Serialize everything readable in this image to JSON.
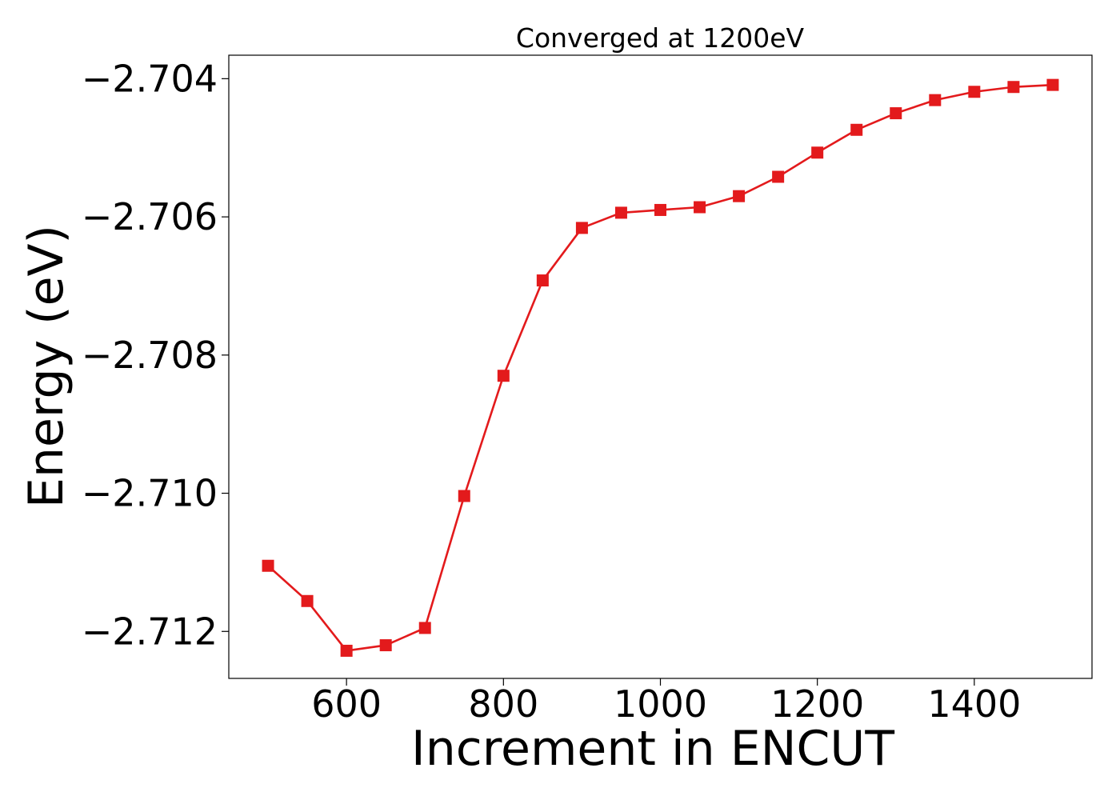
{
  "chart_data": {
    "type": "line",
    "title": "Converged at 1200eV",
    "xlabel": "Increment in ENCUT",
    "ylabel": "Energy (eV)",
    "xlim": [
      450,
      1550
    ],
    "ylim": [
      -2.71268,
      -2.70366
    ],
    "x_ticks": [
      600,
      800,
      1000,
      1200,
      1400
    ],
    "x_tick_labels": [
      "600",
      "800",
      "1000",
      "1200",
      "1400"
    ],
    "y_ticks": [
      -2.704,
      -2.706,
      -2.708,
      -2.71,
      -2.712
    ],
    "y_tick_labels": [
      "−2.704",
      "−2.706",
      "−2.708",
      "−2.710",
      "−2.712"
    ],
    "grid": false,
    "marker": "square",
    "color": "#e31a1c",
    "series": [
      {
        "x": [
          500,
          550,
          600,
          650,
          700,
          750,
          800,
          850,
          900,
          950,
          1000,
          1050,
          1100,
          1150,
          1200,
          1250,
          1300,
          1350,
          1400,
          1450,
          1500
        ],
        "values": [
          -2.71105,
          -2.71156,
          -2.71228,
          -2.7122,
          -2.71195,
          -2.71004,
          -2.7083,
          -2.70692,
          -2.70616,
          -2.70594,
          -2.7059,
          -2.70586,
          -2.7057,
          -2.70542,
          -2.70507,
          -2.70474,
          -2.7045,
          -2.70431,
          -2.70419,
          -2.70412,
          -2.70409
        ]
      }
    ]
  }
}
